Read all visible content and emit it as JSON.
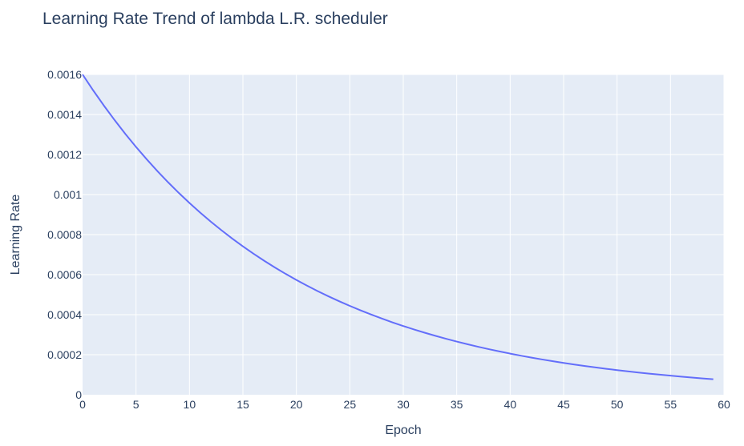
{
  "chart_data": {
    "type": "line",
    "title": "Learning Rate Trend of lambda L.R. scheduler",
    "xlabel": "Epoch",
    "ylabel": "Learning Rate",
    "xlim": [
      0,
      60
    ],
    "ylim": [
      0,
      0.0016
    ],
    "x_ticks": [
      "0",
      "5",
      "10",
      "15",
      "20",
      "25",
      "30",
      "35",
      "40",
      "45",
      "50",
      "55",
      "60"
    ],
    "y_ticks": [
      "0",
      "0.0002",
      "0.0004",
      "0.0006",
      "0.0008",
      "0.001",
      "0.0012",
      "0.0014",
      "0.0016"
    ],
    "grid": true,
    "series": [
      {
        "color": "#636efa",
        "x": [
          0,
          1,
          2,
          3,
          4,
          5,
          6,
          7,
          8,
          9,
          10,
          11,
          12,
          13,
          14,
          15,
          16,
          17,
          18,
          19,
          20,
          21,
          22,
          23,
          24,
          25,
          26,
          27,
          28,
          29,
          30,
          31,
          32,
          33,
          34,
          35,
          36,
          37,
          38,
          39,
          40,
          41,
          42,
          43,
          44,
          45,
          46,
          47,
          48,
          49,
          50,
          51,
          52,
          53,
          54,
          55,
          56,
          57,
          58,
          59
        ],
        "y": [
          0.0016,
          0.00152,
          0.001444,
          0.0013718,
          0.0013032,
          0.0012381,
          0.0011762,
          0.0011174,
          0.0010615,
          0.0010084,
          0.000958,
          0.0009101,
          0.0008646,
          0.0008214,
          0.0007803,
          0.0007413,
          0.0007042,
          0.000669,
          0.0006356,
          0.0006038,
          0.0005736,
          0.0005449,
          0.0005177,
          0.0004918,
          0.0004672,
          0.0004439,
          0.0004217,
          0.0004006,
          0.0003806,
          0.0003615,
          0.0003434,
          0.0003263,
          0.00031,
          0.0002945,
          0.0002797,
          0.0002658,
          0.0002525,
          0.0002398,
          0.0002278,
          0.0002165,
          0.0002056,
          0.0001953,
          0.0001856,
          0.0001763,
          0.0001675,
          0.0001591,
          0.0001512,
          0.0001436,
          0.0001364,
          0.0001296,
          0.0001231,
          0.000117,
          0.0001111,
          0.0001056,
          0.0001003,
          9.53e-05,
          9.05e-05,
          8.6e-05,
          8.17e-05,
          7.76e-05
        ]
      }
    ]
  }
}
